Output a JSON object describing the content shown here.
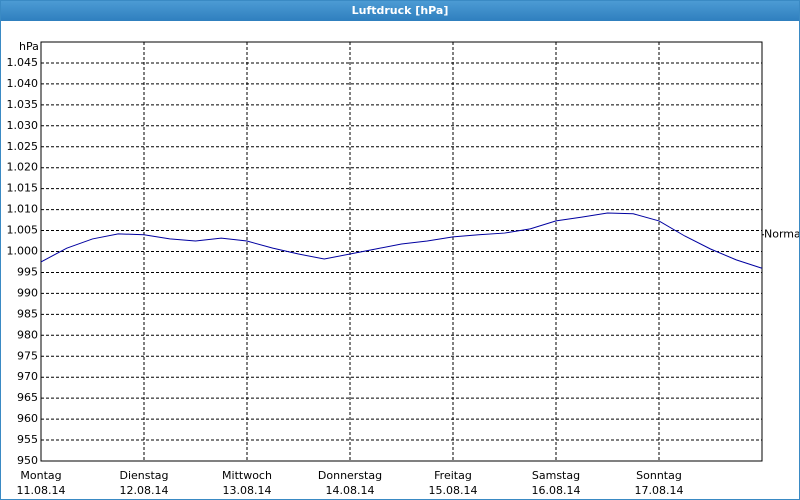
{
  "title": "Luftdruck [hPa]",
  "chart_data": {
    "type": "line",
    "y_unit": "hPa",
    "days": [
      {
        "name": "Montag",
        "date": "11.08.14"
      },
      {
        "name": "Dienstag",
        "date": "12.08.14"
      },
      {
        "name": "Mittwoch",
        "date": "13.08.14"
      },
      {
        "name": "Donnerstag",
        "date": "14.08.14"
      },
      {
        "name": "Freitag",
        "date": "15.08.14"
      },
      {
        "name": "Samstag",
        "date": "16.08.14"
      },
      {
        "name": "Sonntag",
        "date": "17.08.14"
      }
    ],
    "series": [
      {
        "color": "#0000a0",
        "values": [
          997.5,
          1000.8,
          1003,
          1004.2,
          1004,
          1003,
          1002.5,
          1003.2,
          1002.5,
          1000.8,
          999.4,
          998.2,
          999.4,
          1000.6,
          1001.8,
          1002.5,
          1003.5,
          1004,
          1004.4,
          1005.4,
          1007.3,
          1008.2,
          1009.2,
          1009,
          1007.3,
          1003.7,
          1000.6,
          998,
          996
        ]
      }
    ],
    "annotation": {
      "text": "Normal",
      "value": 1004
    },
    "ylim": [
      950,
      1050
    ],
    "yticks": [
      950,
      955,
      960,
      965,
      970,
      975,
      980,
      985,
      990,
      995,
      {
        "value": 1000,
        "label": "1.000"
      },
      {
        "value": 1005,
        "label": "1.005"
      },
      {
        "value": 1010,
        "label": "1.010"
      },
      {
        "value": 1015,
        "label": "1.015"
      },
      {
        "value": 1020,
        "label": "1.020"
      },
      {
        "value": 1025,
        "label": "1.025"
      },
      {
        "value": 1030,
        "label": "1.030"
      },
      {
        "value": 1035,
        "label": "1.035"
      },
      {
        "value": 1040,
        "label": "1.040"
      },
      {
        "value": 1045,
        "label": "1.045"
      }
    ],
    "grid": true
  }
}
